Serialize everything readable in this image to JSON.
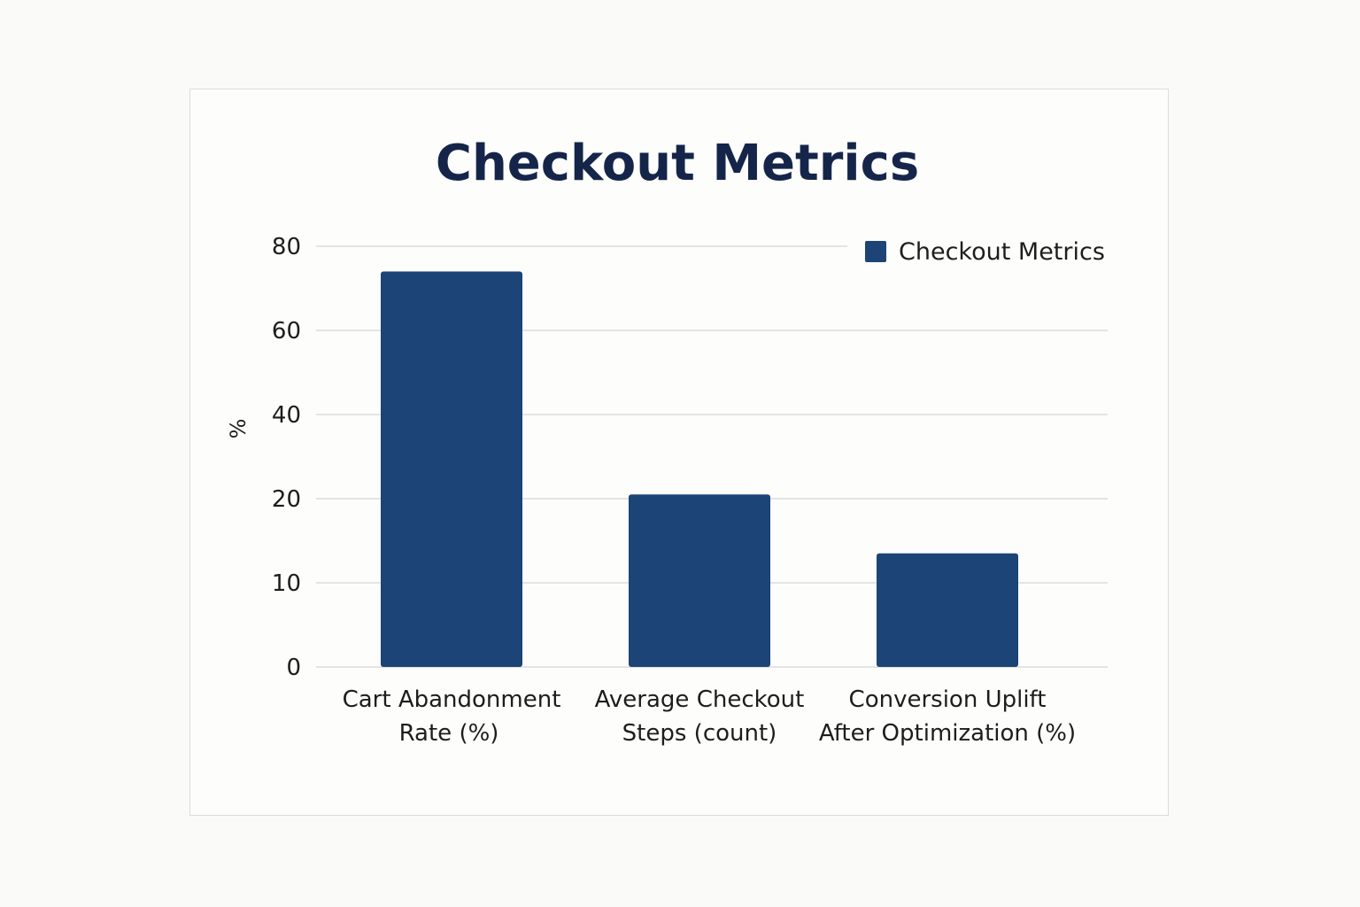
{
  "chart_data": {
    "type": "bar",
    "title": "Checkout Metrics",
    "ylabel": "%",
    "xlabel": "",
    "categories": [
      [
        "Cart Abandonment",
        "Rate (%)"
      ],
      [
        "Average Checkout",
        "Steps (count)"
      ],
      [
        "Conversion Uplift",
        "After Optimization (%)"
      ]
    ],
    "series": [
      {
        "name": "Checkout Metrics",
        "values": [
          74,
          21,
          13.5
        ],
        "color": "#1d4477"
      }
    ],
    "yticks": [
      0,
      10,
      20,
      40,
      60,
      80
    ],
    "ylim": [
      0,
      80
    ],
    "grid": true,
    "legend_position": "top-right"
  }
}
